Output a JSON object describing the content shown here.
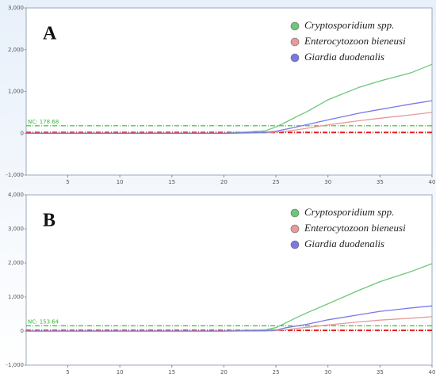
{
  "chart_data": [
    {
      "type": "line",
      "label": "A",
      "x": [
        1,
        20,
        24,
        25,
        26,
        27,
        28,
        30,
        33,
        35,
        38,
        40
      ],
      "series": [
        {
          "name": "Cryptosporidium spp.",
          "color": "#6cc77a",
          "values": [
            0,
            0,
            60,
            150,
            270,
            400,
            520,
            800,
            1100,
            1250,
            1450,
            1650
          ]
        },
        {
          "name": "Enterocytozoon bieneusi",
          "color": "#e69a9a",
          "values": [
            0,
            0,
            10,
            30,
            50,
            80,
            120,
            200,
            300,
            360,
            440,
            500
          ]
        },
        {
          "name": "Giardia duodenalis",
          "color": "#7b78e6",
          "values": [
            0,
            0,
            20,
            50,
            100,
            150,
            210,
            320,
            480,
            570,
            700,
            780
          ]
        }
      ],
      "xlim": [
        1,
        40
      ],
      "xticks": [
        5,
        10,
        15,
        20,
        25,
        30,
        35,
        40
      ],
      "ylim": [
        -1000,
        3000
      ],
      "yticks": [
        {
          "value": -1000,
          "label": "-1,000"
        },
        0,
        {
          "value": 1000,
          "label": "1,000"
        },
        {
          "value": 2000,
          "label": "2,000"
        },
        {
          "value": 3000,
          "label": "3,000"
        }
      ],
      "threshold": {
        "label": "NC: 178.68",
        "value": 178.68,
        "color": "#33bb33"
      },
      "baseline": {
        "value": 20,
        "color": "#e02020"
      },
      "legend": "upper right"
    },
    {
      "type": "line",
      "label": "B",
      "x": [
        1,
        20,
        24,
        25,
        26,
        27,
        28,
        30,
        33,
        35,
        38,
        40
      ],
      "series": [
        {
          "name": "Cryptosporidium spp.",
          "color": "#6cc77a",
          "values": [
            0,
            0,
            40,
            100,
            250,
            400,
            540,
            800,
            1200,
            1450,
            1750,
            1980
          ]
        },
        {
          "name": "Enterocytozoon bieneusi",
          "color": "#e69a9a",
          "values": [
            0,
            0,
            5,
            15,
            40,
            80,
            110,
            180,
            270,
            320,
            380,
            420
          ]
        },
        {
          "name": "Giardia duodenalis",
          "color": "#7b78e6",
          "values": [
            0,
            0,
            10,
            30,
            100,
            150,
            200,
            330,
            480,
            580,
            680,
            740
          ]
        }
      ],
      "xlim": [
        1,
        40
      ],
      "xticks": [
        5,
        10,
        15,
        20,
        25,
        30,
        35,
        40
      ],
      "ylim": [
        -1000,
        4000
      ],
      "yticks": [
        {
          "value": -1000,
          "label": "-1,000"
        },
        0,
        {
          "value": 1000,
          "label": "1,000"
        },
        {
          "value": 2000,
          "label": "2,000"
        },
        {
          "value": 3000,
          "label": "3,000"
        },
        {
          "value": 4000,
          "label": "4,000"
        }
      ],
      "threshold": {
        "label": "NC: 153.64",
        "value": 153.64,
        "color": "#33bb33"
      },
      "baseline": {
        "value": 20,
        "color": "#e02020"
      },
      "legend": "upper right"
    }
  ]
}
